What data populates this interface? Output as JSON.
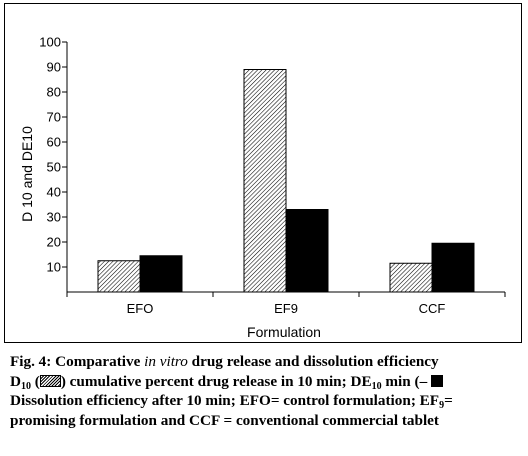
{
  "chart_data": {
    "type": "bar",
    "categories": [
      "EFO",
      "EF9",
      "CCF"
    ],
    "series": [
      {
        "values": [
          12.5,
          89,
          11.5
        ],
        "fill": "hatched"
      },
      {
        "values": [
          14.5,
          33,
          19.5
        ],
        "fill": "solid"
      }
    ],
    "title": "",
    "xlabel": "Formulation",
    "ylabel": "D 10 and DE10",
    "ylim": [
      0,
      100
    ],
    "yticks": [
      10,
      20,
      30,
      40,
      50,
      60,
      70,
      80,
      90,
      100
    ],
    "grid": false,
    "legend": "none"
  },
  "caption": {
    "fig_label": "Fig. 4",
    "line1_a": ": Comparative ",
    "line1_italic": "in vitro",
    "line1_b": " drug release and dissolution efficiency",
    "line2_d": "D",
    "line2_d_sub": "10",
    "line2_open": " (",
    "line2_a": ") cumulative percent drug release in 10 min; DE",
    "line2_de_sub": "10",
    "line2_b": " min (– ",
    "line3": "Dissolution efficiency after 10 min; EFO= control formulation; EF",
    "line3_sub": "9",
    "line3_end": "=",
    "line4": "promising formulation and CCF = conventional commercial tablet"
  },
  "colors": {
    "solid_bar": "#000000",
    "hatch": "#000000",
    "background": "#ffffff"
  }
}
